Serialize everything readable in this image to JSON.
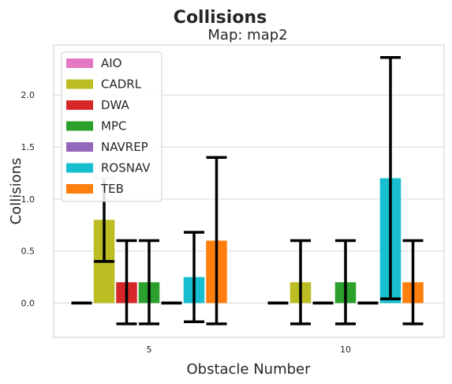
{
  "chart_data": {
    "type": "bar",
    "title": "Collisions",
    "subtitle": "Map: map2",
    "xlabel": "Obstacle Number",
    "ylabel": "Collisions",
    "categories": [
      "5",
      "10"
    ],
    "ylim": [
      -0.33,
      2.48
    ],
    "yticks": [
      "0.0",
      "0.5",
      "1.0",
      "1.5",
      "2.0"
    ],
    "ytick_values": [
      0,
      0.5,
      1.0,
      1.5,
      2.0
    ],
    "grid": true,
    "legend_position": "top-left",
    "series": [
      {
        "name": "AIO",
        "color": "#e377c2",
        "values": [
          0.0,
          0.0
        ],
        "err_low": [
          0.0,
          0.0
        ],
        "err_high": [
          0.0,
          0.0
        ]
      },
      {
        "name": "CADRL",
        "color": "#bcbd22",
        "values": [
          0.8,
          0.2
        ],
        "err_low": [
          0.4,
          -0.2
        ],
        "err_high": [
          1.2,
          0.6
        ]
      },
      {
        "name": "DWA",
        "color": "#d62728",
        "values": [
          0.2,
          0.0
        ],
        "err_low": [
          -0.2,
          0.0
        ],
        "err_high": [
          0.6,
          0.0
        ]
      },
      {
        "name": "MPC",
        "color": "#2ca02c",
        "values": [
          0.2,
          0.2
        ],
        "err_low": [
          -0.2,
          -0.2
        ],
        "err_high": [
          0.6,
          0.6
        ]
      },
      {
        "name": "NAVREP",
        "color": "#9467bd",
        "values": [
          0.0,
          0.0
        ],
        "err_low": [
          0.0,
          0.0
        ],
        "err_high": [
          0.0,
          0.0
        ]
      },
      {
        "name": "ROSNAV",
        "color": "#17becf",
        "values": [
          0.25,
          1.2
        ],
        "err_low": [
          -0.18,
          0.04
        ],
        "err_high": [
          0.68,
          2.36
        ]
      },
      {
        "name": "TEB",
        "color": "#ff7f0e",
        "values": [
          0.6,
          0.2
        ],
        "err_low": [
          -0.2,
          -0.2
        ],
        "err_high": [
          1.4,
          0.6
        ]
      }
    ]
  }
}
